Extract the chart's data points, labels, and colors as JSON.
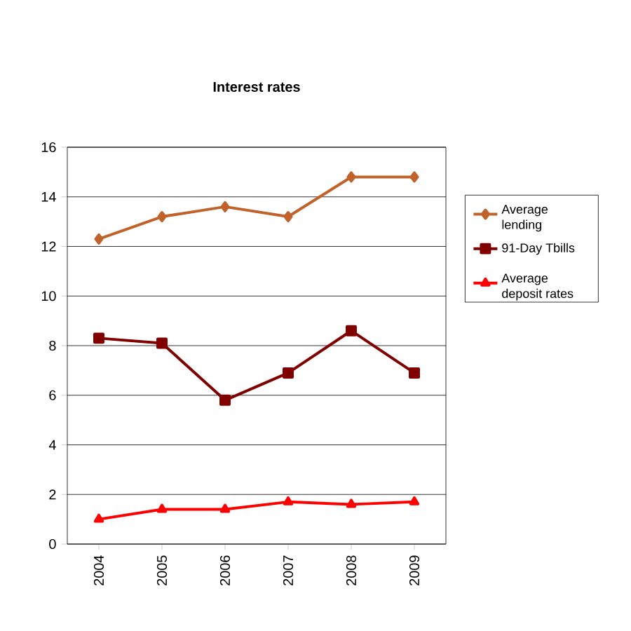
{
  "chart_data": {
    "type": "line",
    "title": "Interest rates",
    "categories": [
      "2004",
      "2005",
      "2006",
      "2007",
      "2008",
      "2009"
    ],
    "ylim": [
      0,
      16
    ],
    "yticks": [
      0,
      2,
      4,
      6,
      8,
      10,
      12,
      14,
      16
    ],
    "grid": "y",
    "legend": "right",
    "line_style": "solid",
    "series": [
      {
        "name": "Average lending",
        "color": "#c0622a",
        "marker": "diamond",
        "values": [
          12.3,
          13.2,
          13.6,
          13.2,
          14.8,
          14.8
        ]
      },
      {
        "name": "91-Day Tbills",
        "color": "#800000",
        "marker": "square",
        "values": [
          8.3,
          8.1,
          5.8,
          6.9,
          8.6,
          6.9
        ]
      },
      {
        "name": "Average deposit rates",
        "color": "#ff0000",
        "marker": "triangle",
        "values": [
          1.0,
          1.4,
          1.4,
          1.7,
          1.6,
          1.7
        ]
      }
    ]
  }
}
